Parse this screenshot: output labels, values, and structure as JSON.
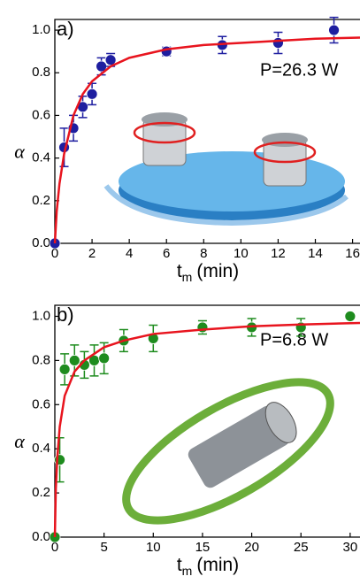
{
  "chart_data": [
    {
      "type": "scatter",
      "panel_label": "a)",
      "annotation": "P=26.3 W",
      "y_label": "α",
      "x_label": {
        "symbol": "t",
        "subscript": "m",
        "unit": "(min)"
      },
      "xlim": [
        0,
        16.4
      ],
      "xticks": [
        0,
        2,
        4,
        6,
        8,
        10,
        12,
        14,
        16
      ],
      "ylim": [
        0,
        1.05
      ],
      "yticks": [
        {
          "value": 0,
          "label": "0.0"
        },
        0.2,
        0.4,
        0.6,
        0.8,
        {
          "value": 1,
          "label": "1.0"
        }
      ],
      "series": [
        {
          "style": "markers",
          "color": "#1e1ea0",
          "x": [
            0,
            0.5,
            1,
            1.5,
            2,
            2.5,
            3,
            6,
            9,
            12,
            15
          ],
          "values": [
            0,
            0.45,
            0.54,
            0.64,
            0.7,
            0.83,
            0.86,
            0.9,
            0.93,
            0.94,
            1.0
          ],
          "errors": [
            0,
            0.09,
            0.06,
            0.05,
            0.05,
            0.04,
            0.03,
            0.02,
            0.04,
            0.05,
            0.06
          ]
        },
        {
          "style": "line",
          "color": "#e8141e",
          "x": [
            0,
            0.1,
            0.25,
            0.5,
            1,
            1.5,
            2,
            3,
            4,
            6,
            8,
            10,
            12,
            14,
            16.4
          ],
          "values": [
            0,
            0.15,
            0.28,
            0.42,
            0.6,
            0.7,
            0.76,
            0.83,
            0.87,
            0.91,
            0.93,
            0.94,
            0.95,
            0.96,
            0.965
          ]
        }
      ]
    },
    {
      "type": "scatter",
      "panel_label": "b)",
      "annotation": "P=6.8 W",
      "y_label": "α",
      "x_label": {
        "symbol": "t",
        "subscript": "m",
        "unit": "(min)"
      },
      "xlim": [
        0,
        31
      ],
      "xticks": [
        0,
        5,
        10,
        15,
        20,
        25,
        30
      ],
      "ylim": [
        0,
        1.05
      ],
      "yticks": [
        {
          "value": 0,
          "label": "0.0"
        },
        0.2,
        0.4,
        0.6,
        0.8,
        {
          "value": 1,
          "label": "1.0"
        }
      ],
      "series": [
        {
          "style": "markers",
          "color": "#1e8c1e",
          "x": [
            0,
            0.5,
            1,
            2,
            3,
            4,
            5,
            7,
            10,
            15,
            20,
            25,
            30
          ],
          "values": [
            0,
            0.35,
            0.76,
            0.8,
            0.78,
            0.8,
            0.81,
            0.89,
            0.9,
            0.95,
            0.95,
            0.95,
            1.0
          ],
          "errors": [
            0,
            0.1,
            0.07,
            0.07,
            0.06,
            0.07,
            0.07,
            0.05,
            0.06,
            0.03,
            0.04,
            0.04,
            0.01
          ]
        },
        {
          "style": "line",
          "color": "#e8141e",
          "x": [
            0,
            0.1,
            0.25,
            0.5,
            1,
            2,
            3,
            5,
            7,
            10,
            15,
            20,
            25,
            31
          ],
          "values": [
            0,
            0.22,
            0.36,
            0.5,
            0.64,
            0.75,
            0.8,
            0.86,
            0.89,
            0.92,
            0.94,
            0.955,
            0.963,
            0.97
          ]
        }
      ]
    }
  ]
}
